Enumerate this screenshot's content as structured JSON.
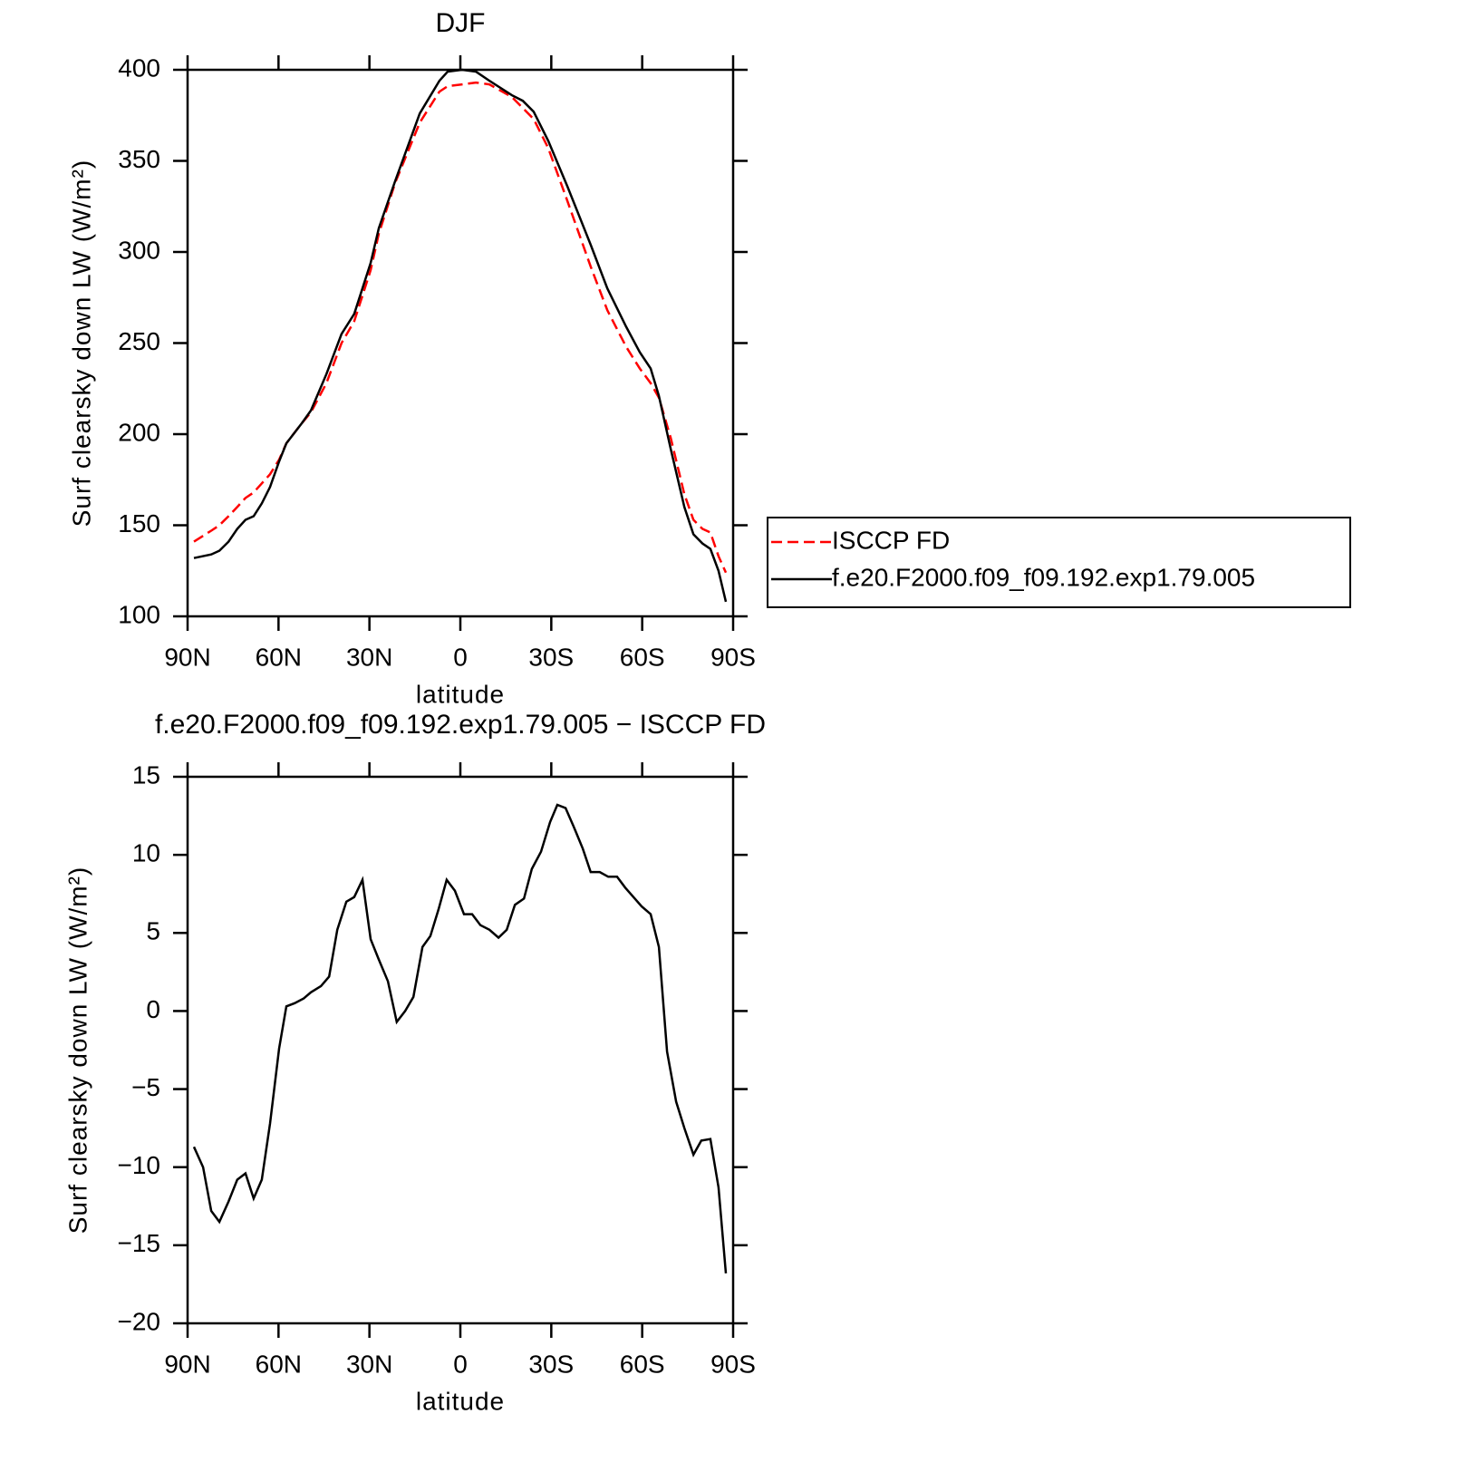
{
  "chart_data": [
    {
      "type": "line",
      "title": "DJF",
      "xlabel": "latitude",
      "ylabel": "Surf clearsky down LW (W/m²)",
      "xlim": [
        90,
        -90
      ],
      "ylim": [
        100,
        400
      ],
      "xticks": [
        {
          "value": 90,
          "label": "90N"
        },
        {
          "value": 60,
          "label": "60N"
        },
        {
          "value": 30,
          "label": "30N"
        },
        0,
        {
          "value": -30,
          "label": "30S"
        },
        {
          "value": -60,
          "label": "60S"
        },
        {
          "value": -90,
          "label": "90S"
        }
      ],
      "yticks": [
        100,
        150,
        200,
        250,
        300,
        350,
        400
      ],
      "legend": "outside right",
      "x": [
        87.9,
        82.2,
        79.5,
        76.5,
        73.6,
        70.9,
        68.2,
        65.5,
        62.8,
        59.8,
        57.4,
        52.3,
        49.3,
        44.2,
        39.2,
        35,
        29.6,
        26.9,
        21.5,
        13.4,
        6.9,
        4.2,
        -0.6,
        -5.1,
        -9.6,
        -17,
        -20.6,
        -24.2,
        -29,
        -35.3,
        -43,
        -48.5,
        -54.7,
        -59.2,
        -62.8,
        -65.5,
        -69.4,
        -73.9,
        -76.9,
        -79.9,
        -82.5,
        -85.2,
        -87.6
      ],
      "series": [
        {
          "name": "ISCCP FD",
          "color": "#ff0000",
          "linestyle": "dashed",
          "values": [
            141,
            147,
            150,
            155,
            160,
            165,
            168,
            173,
            178,
            186,
            195,
            206,
            212,
            228,
            250,
            262,
            290,
            310,
            338,
            371,
            388,
            391,
            392,
            393,
            392,
            385,
            379,
            373,
            357,
            328,
            292,
            268,
            248,
            236,
            228,
            220,
            198,
            167,
            153,
            148,
            146,
            133,
            124
          ]
        },
        {
          "name": "f.e20.F2000.f09_f09.192.exp1.79.005",
          "color": "#000000",
          "linestyle": "solid",
          "values": [
            132,
            134,
            136,
            141,
            148,
            153,
            155,
            162,
            171,
            185,
            195,
            206,
            213,
            233,
            255,
            266,
            294,
            313,
            339,
            376,
            394,
            399,
            400,
            399,
            394,
            386,
            383,
            377,
            361,
            336,
            304,
            280,
            259,
            245,
            236,
            221,
            192,
            160,
            145,
            140,
            137,
            125,
            108
          ]
        }
      ]
    },
    {
      "type": "line",
      "title": "f.e20.F2000.f09_f09.192.exp1.79.005 − ISCCP FD",
      "xlabel": "latitude",
      "ylabel": "Surf clearsky down LW (W/m²)",
      "xlim": [
        90,
        -90
      ],
      "ylim": [
        -20,
        15
      ],
      "xticks": [
        {
          "value": 90,
          "label": "90N"
        },
        {
          "value": 60,
          "label": "60N"
        },
        {
          "value": 30,
          "label": "30N"
        },
        0,
        {
          "value": -30,
          "label": "30S"
        },
        {
          "value": -60,
          "label": "60S"
        },
        {
          "value": -90,
          "label": "90S"
        }
      ],
      "yticks": [
        {
          "value": -20,
          "label": "−20"
        },
        {
          "value": -15,
          "label": "−15"
        },
        {
          "value": -10,
          "label": "−10"
        },
        {
          "value": -5,
          "label": "−5"
        },
        0,
        5,
        10,
        15
      ],
      "x": [
        87.9,
        84.9,
        82.2,
        79.5,
        76.5,
        73.6,
        70.9,
        68.2,
        65.5,
        62.8,
        59.8,
        57.4,
        54.7,
        51.7,
        49.3,
        46,
        43.3,
        40.6,
        37.6,
        35,
        32.3,
        29.6,
        26.9,
        23.9,
        21,
        18.2,
        15.5,
        12.5,
        9.9,
        7.2,
        4.5,
        1.8,
        -1.2,
        -3.9,
        -6.6,
        -9.6,
        -12.6,
        -15.3,
        -18,
        -21,
        -23.6,
        -26.6,
        -29.6,
        -32,
        -34.7,
        -37.4,
        -40.4,
        -43,
        -46,
        -48.8,
        -51.7,
        -54.4,
        -57.1,
        -59.8,
        -62.8,
        -65.5,
        -68.2,
        -71.2,
        -73.9,
        -76.9,
        -79.5,
        -82.5,
        -85.2,
        -87.6
      ],
      "series": [
        {
          "color": "#000000",
          "linestyle": "solid",
          "values": [
            -8.7,
            -10.0,
            -12.8,
            -13.5,
            -12.2,
            -10.8,
            -10.4,
            -12.0,
            -10.8,
            -7.2,
            -2.4,
            0.3,
            0.5,
            0.8,
            1.2,
            1.6,
            2.2,
            5.2,
            7.0,
            7.3,
            8.4,
            4.6,
            3.3,
            1.9,
            -0.7,
            0,
            0.9,
            4.1,
            4.8,
            6.5,
            8.4,
            7.7,
            6.2,
            6.2,
            5.5,
            5.2,
            4.7,
            5.2,
            6.8,
            7.2,
            9.1,
            10.2,
            12.1,
            13.2,
            13.0,
            11.8,
            10.4,
            8.9,
            8.9,
            8.6,
            8.6,
            7.9,
            7.3,
            6.7,
            6.2,
            4.1,
            -2.6,
            -5.8,
            -7.5,
            -9.2,
            -8.3,
            -8.2,
            -11.3,
            -16.8
          ]
        }
      ]
    }
  ]
}
